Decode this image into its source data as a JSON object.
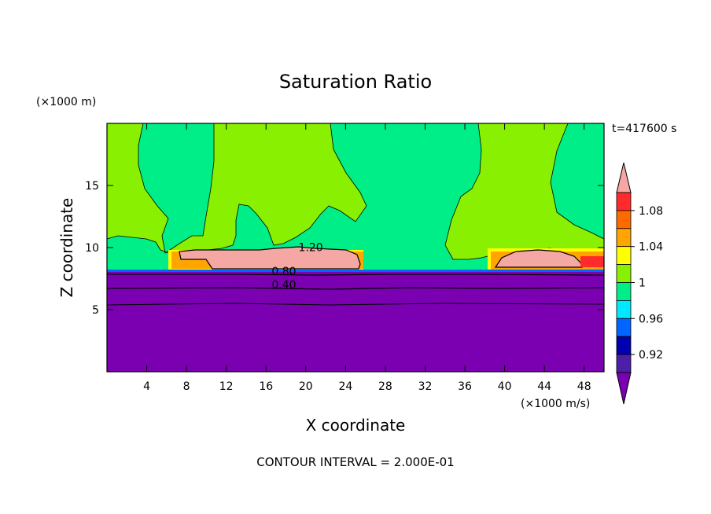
{
  "chart_data": {
    "type": "heatmap",
    "title": "Saturation Ratio",
    "xlabel": "X coordinate",
    "ylabel": "Z coordinate",
    "x_unit": "(×1000 m/s)",
    "y_unit": "(×1000 m)",
    "time_label": "t=417600 s",
    "footer": "CONTOUR INTERVAL = 2.000E-01",
    "xlim": [
      0,
      50
    ],
    "ylim": [
      0,
      20
    ],
    "x_ticks": [
      4,
      8,
      12,
      16,
      20,
      24,
      28,
      32,
      36,
      40,
      44,
      48
    ],
    "y_ticks": [
      5,
      10,
      15
    ],
    "colorbar": {
      "labels": [
        "1.08",
        "1.04",
        "1",
        "0.96",
        "0.92"
      ],
      "bands": [
        {
          "color": "#f4a7a3"
        },
        {
          "color": "#ff2a2a"
        },
        {
          "color": "#ff6a00"
        },
        {
          "color": "#ffa500"
        },
        {
          "color": "#ffff00"
        },
        {
          "color": "#88f000"
        },
        {
          "color": "#00ee88"
        },
        {
          "color": "#00e8ff"
        },
        {
          "color": "#0066ff"
        },
        {
          "color": "#0000b0"
        },
        {
          "color": "#4b1fa8"
        },
        {
          "color": "#7a00b2"
        }
      ]
    },
    "contour_labels": [
      {
        "text": "1.20",
        "x": 20.5,
        "y": 9.7
      },
      {
        "text": "0.80",
        "x": 17.8,
        "y": 7.8
      },
      {
        "text": "0.40",
        "x": 17.8,
        "y": 6.7
      }
    ],
    "regions": {
      "low_layer_top_km": 8.2,
      "contours_km": [
        7.9,
        6.7,
        5.3
      ],
      "supersaturated_patches_x_km": [
        [
          7.3,
          25.0
        ],
        [
          38.8,
          48.0
        ]
      ]
    }
  }
}
